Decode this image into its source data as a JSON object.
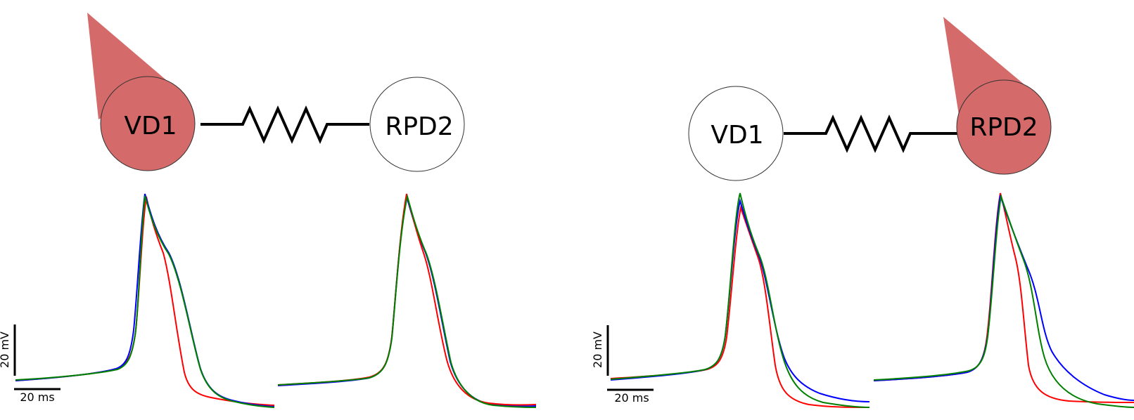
{
  "panels": [
    {
      "cells": [
        "VD1",
        "RPD2"
      ],
      "stimulated_cell": "VD1",
      "scale_bar": {
        "voltage": "20 mV",
        "time": "20 ms"
      }
    },
    {
      "cells": [
        "VD1",
        "RPD2"
      ],
      "stimulated_cell": "RPD2",
      "scale_bar": {
        "voltage": "20 mV",
        "time": "20 ms"
      }
    }
  ],
  "colors": {
    "electrode": "#d46a6a",
    "traces": [
      "#ff0000",
      "#0000ff",
      "#008000"
    ],
    "line": "#000000"
  }
}
